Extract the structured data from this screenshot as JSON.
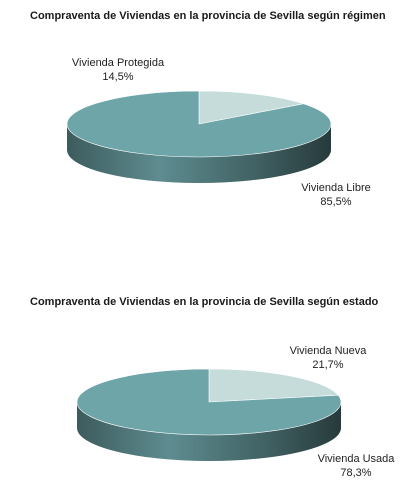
{
  "chart_data": [
    {
      "type": "pie",
      "title": "Compraventa de Viviendas en la provincia de Sevilla según régimen",
      "slices": [
        {
          "label": "Vivienda Protegida",
          "value": 14.5,
          "value_label": "14,5%",
          "color": "#c5dcdb"
        },
        {
          "label": "Vivienda Libre",
          "value": 85.5,
          "value_label": "85,5%",
          "color": "#6ea5a9"
        }
      ],
      "three_d": true,
      "legend": "none"
    },
    {
      "type": "pie",
      "title": "Compraventa de Viviendas en la provincia de Sevilla según estado",
      "slices": [
        {
          "label": "Vivienda Nueva",
          "value": 21.7,
          "value_label": "21,7%",
          "color": "#c5dcdb"
        },
        {
          "label": "Vivienda Usada",
          "value": 78.3,
          "value_label": "78,3%",
          "color": "#6ea5a9"
        }
      ],
      "three_d": true,
      "legend": "none"
    }
  ]
}
